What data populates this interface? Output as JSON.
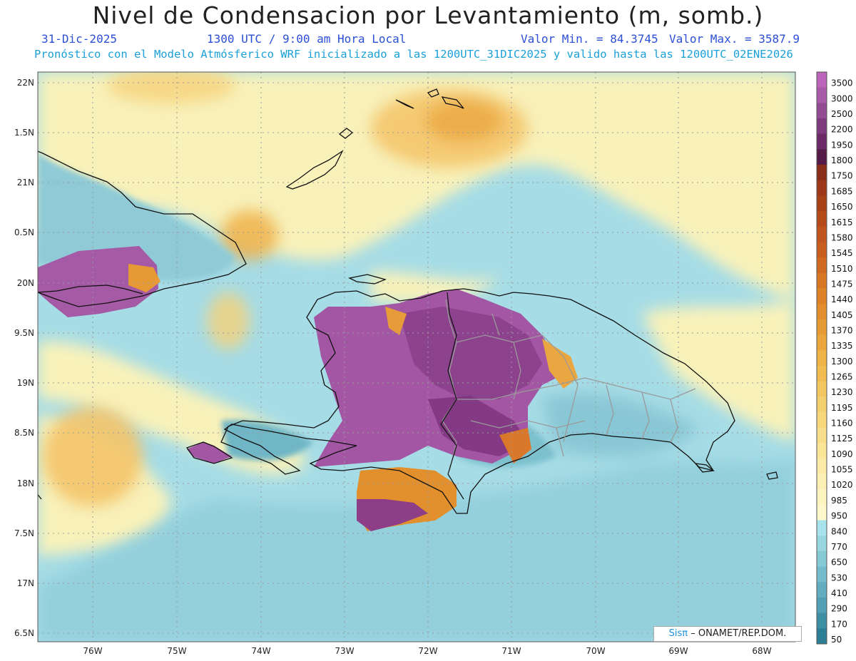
{
  "header": {
    "title": "Nivel de Condensacion por Levantamiento (m, somb.)",
    "date": "31-Dic-2025",
    "time": "1300 UTC / 9:00 am Hora Local",
    "min": "Valor Min. = 84.3745",
    "max": "Valor Max. = 3587.9",
    "subtitle": "Pronóstico con el Modelo Atmósferico WRF inicializado a las 1200UTC_31DIC2025 y valido hasta las  1200UTC_02ENE2026"
  },
  "map": {
    "lat_labels": [
      "22N",
      "1.5N",
      "21N",
      "0.5N",
      "20N",
      "9.5N",
      "19N",
      "8.5N",
      "18N",
      "7.5N",
      "17N",
      "6.5N"
    ],
    "lon_labels": [
      "76W",
      "75W",
      "74W",
      "73W",
      "72W",
      "71W",
      "70W",
      "69W",
      "68W"
    ]
  },
  "colorbar": {
    "labels": [
      "3500",
      "3000",
      "2500",
      "2200",
      "1950",
      "1800",
      "1750",
      "1685",
      "1650",
      "1615",
      "1580",
      "1545",
      "1510",
      "1475",
      "1440",
      "1405",
      "1370",
      "1335",
      "1300",
      "1265",
      "1230",
      "1195",
      "1160",
      "1125",
      "1090",
      "1055",
      "1020",
      "985",
      "950",
      "840",
      "770",
      "650",
      "530",
      "410",
      "290",
      "170",
      "50"
    ],
    "colors": [
      "#bb66bb",
      "#a95aa9",
      "#944b94",
      "#7d3a7d",
      "#6a2a65",
      "#561a48",
      "#8a2e1a",
      "#9c3818",
      "#a84018",
      "#b44a1a",
      "#c0541c",
      "#c85e1e",
      "#d06a20",
      "#d87624",
      "#de8228",
      "#e28e2e",
      "#e69a34",
      "#eaa63c",
      "#eeb246",
      "#f0bc52",
      "#f2c660",
      "#f4cf6e",
      "#f6d77c",
      "#f8de8a",
      "#fae598",
      "#fbeba6",
      "#fcf0b4",
      "#fdf4c0",
      "#fef8cc",
      "#a8e2ea",
      "#98d6e0",
      "#86cad6",
      "#74bccc",
      "#62aec0",
      "#509fb2",
      "#3e8fa4",
      "#2e7f96"
    ]
  },
  "credit": {
    "sis": "Sisπ",
    "rest": "– ONAMET/REP.DOM."
  }
}
